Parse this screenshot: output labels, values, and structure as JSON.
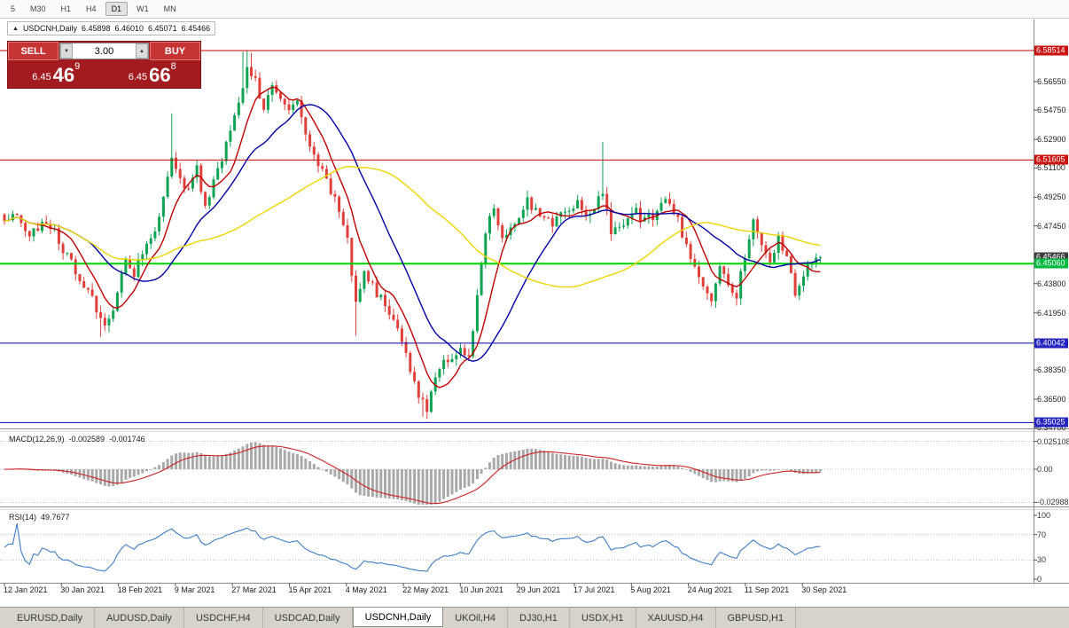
{
  "toolbar": {
    "timeframes": [
      {
        "label": "5",
        "active": false
      },
      {
        "label": "M30",
        "active": false
      },
      {
        "label": "H1",
        "active": false
      },
      {
        "label": "H4",
        "active": false
      },
      {
        "label": "D1",
        "active": true
      },
      {
        "label": "W1",
        "active": false
      },
      {
        "label": "MN",
        "active": false
      }
    ]
  },
  "header": {
    "direction_arrow": "▲",
    "symbol": "USDCNH,Daily",
    "open": "6.45898",
    "high": "6.46010",
    "low": "6.45071",
    "close": "6.45466"
  },
  "trade_panel": {
    "sell_label": "SELL",
    "buy_label": "BUY",
    "volume": "3.00",
    "volume_down_glyph": "▼",
    "volume_up_glyph": "▲",
    "bid": {
      "small": "6.45",
      "big": "46",
      "sup": "9"
    },
    "ask": {
      "small": "6.45",
      "big": "66",
      "sup": "8"
    }
  },
  "price_axis": {
    "labels": [
      {
        "text": "6.56550",
        "price": 6.5655
      },
      {
        "text": "6.54750",
        "price": 6.5475
      },
      {
        "text": "6.52900",
        "price": 6.529
      },
      {
        "text": "6.51100",
        "price": 6.511
      },
      {
        "text": "6.49250",
        "price": 6.4925
      },
      {
        "text": "6.47450",
        "price": 6.4745
      },
      {
        "text": "6.45600",
        "price": 6.456
      },
      {
        "text": "6.43800",
        "price": 6.438
      },
      {
        "text": "6.41950",
        "price": 6.4195
      },
      {
        "text": "6.38350",
        "price": 6.3835
      },
      {
        "text": "6.36500",
        "price": 6.365
      },
      {
        "text": "6.34700",
        "price": 6.347
      }
    ],
    "boxes": [
      {
        "text": "6.58514",
        "price": 6.58514,
        "color": "red"
      },
      {
        "text": "6.51605",
        "price": 6.51605,
        "color": "red"
      },
      {
        "text": "6.45466",
        "price": 6.45466,
        "color": "black"
      },
      {
        "text": "6.45060",
        "price": 6.4506,
        "color": "green"
      },
      {
        "text": "6.40042",
        "price": 6.40042,
        "color": "blue"
      },
      {
        "text": "6.35025",
        "price": 6.35025,
        "color": "blue"
      }
    ]
  },
  "indicator_panels": {
    "macd": {
      "title": "MACD(12,26,9)",
      "main_value": "-0.002589",
      "signal_value": "-0.001746",
      "axis_labels": [
        {
          "text": "0.025108",
          "value": 0.025108
        },
        {
          "text": "0.00",
          "value": 0
        },
        {
          "text": "-0.02988",
          "value": -0.02988
        }
      ]
    },
    "rsi": {
      "title": "RSI(14)",
      "value": "49.7677",
      "axis_labels": [
        {
          "text": "100",
          "value": 100
        },
        {
          "text": "70",
          "value": 70
        },
        {
          "text": "30",
          "value": 30
        },
        {
          "text": "0",
          "value": 0
        }
      ]
    }
  },
  "time_axis": {
    "labels": [
      "12 Jan 2021",
      "30 Jan 2021",
      "18 Feb 2021",
      "9 Mar 2021",
      "27 Mar 2021",
      "15 Apr 2021",
      "4 May 2021",
      "22 May 2021",
      "10 Jun 2021",
      "29 Jun 2021",
      "17 Jul 2021",
      "5 Aug 2021",
      "24 Aug 2021",
      "11 Sep 2021",
      "30 Sep 2021"
    ]
  },
  "tabs": [
    {
      "label": "EURUSD,Daily",
      "active": false
    },
    {
      "label": "AUDUSD,Daily",
      "active": false
    },
    {
      "label": "USDCHF,H4",
      "active": false
    },
    {
      "label": "USDCAD,Daily",
      "active": false
    },
    {
      "label": "USDCNH,Daily",
      "active": true
    },
    {
      "label": "UKOil,H4",
      "active": false
    },
    {
      "label": "DJ30,H1",
      "active": false
    },
    {
      "label": "USDX,H1",
      "active": false
    },
    {
      "label": "XAUUSD,H4",
      "active": false
    },
    {
      "label": "GBPUSD,H1",
      "active": false
    }
  ],
  "colors": {
    "candle_up": "#0fa352",
    "candle_down": "#e0403a",
    "ma_fast": "#c00000",
    "ma_mid": "#0000a6",
    "ma_slow": "#eed500",
    "macd_histogram": "#a9a9a9",
    "macd_signal": "#cc2222",
    "rsi_line": "#3d7dc8",
    "hline_red": "#cc0000",
    "hline_green": "#00d200",
    "hline_blue": "#0000bb",
    "axis_box_red": "#cc1111",
    "axis_box_green": "#00b93e",
    "axis_box_blue": "#2424c0",
    "axis_box_black": "#3e3e3e",
    "sell_buy_button": "#c63434",
    "panel_background": "#a31b1e"
  },
  "chart_data": {
    "type": "candlestick",
    "symbol": "USDCNH",
    "timeframe": "Daily",
    "current_bar": {
      "open": 6.45898,
      "high": 6.4601,
      "low": 6.45071,
      "close": 6.45466
    },
    "price_axis_visible_range": [
      6.347,
      6.605
    ],
    "num_candles": 196,
    "close_path_anchors": [
      [
        0,
        6.476
      ],
      [
        3,
        6.481
      ],
      [
        6,
        6.47
      ],
      [
        9,
        6.476
      ],
      [
        12,
        6.47
      ],
      [
        15,
        6.455
      ],
      [
        18,
        6.442
      ],
      [
        21,
        6.428
      ],
      [
        24,
        6.411
      ],
      [
        26,
        6.423
      ],
      [
        29,
        6.452
      ],
      [
        31,
        6.443
      ],
      [
        33,
        6.458
      ],
      [
        35,
        6.465
      ],
      [
        38,
        6.49
      ],
      [
        40,
        6.517
      ],
      [
        42,
        6.503
      ],
      [
        44,
        6.498
      ],
      [
        46,
        6.511
      ],
      [
        48,
        6.486
      ],
      [
        50,
        6.503
      ],
      [
        53,
        6.525
      ],
      [
        56,
        6.55
      ],
      [
        58,
        6.572
      ],
      [
        60,
        6.566
      ],
      [
        62,
        6.549
      ],
      [
        64,
        6.561
      ],
      [
        66,
        6.553
      ],
      [
        68,
        6.546
      ],
      [
        70,
        6.552
      ],
      [
        73,
        6.525
      ],
      [
        76,
        6.508
      ],
      [
        79,
        6.492
      ],
      [
        82,
        6.468
      ],
      [
        84,
        6.424
      ],
      [
        86,
        6.443
      ],
      [
        88,
        6.436
      ],
      [
        90,
        6.428
      ],
      [
        92,
        6.418
      ],
      [
        95,
        6.403
      ],
      [
        97,
        6.385
      ],
      [
        99,
        6.368
      ],
      [
        101,
        6.357
      ],
      [
        103,
        6.379
      ],
      [
        105,
        6.388
      ],
      [
        107,
        6.392
      ],
      [
        109,
        6.398
      ],
      [
        111,
        6.391
      ],
      [
        113,
        6.429
      ],
      [
        115,
        6.471
      ],
      [
        117,
        6.486
      ],
      [
        119,
        6.469
      ],
      [
        121,
        6.474
      ],
      [
        123,
        6.482
      ],
      [
        125,
        6.49
      ],
      [
        127,
        6.485
      ],
      [
        129,
        6.48
      ],
      [
        131,
        6.475
      ],
      [
        133,
        6.481
      ],
      [
        135,
        6.483
      ],
      [
        137,
        6.489
      ],
      [
        139,
        6.478
      ],
      [
        141,
        6.487
      ],
      [
        143,
        6.497
      ],
      [
        145,
        6.469
      ],
      [
        147,
        6.474
      ],
      [
        149,
        6.479
      ],
      [
        151,
        6.483
      ],
      [
        153,
        6.477
      ],
      [
        155,
        6.481
      ],
      [
        157,
        6.491
      ],
      [
        159,
        6.486
      ],
      [
        161,
        6.478
      ],
      [
        163,
        6.461
      ],
      [
        165,
        6.447
      ],
      [
        167,
        6.437
      ],
      [
        169,
        6.426
      ],
      [
        171,
        6.448
      ],
      [
        173,
        6.438
      ],
      [
        175,
        6.431
      ],
      [
        177,
        6.456
      ],
      [
        179,
        6.477
      ],
      [
        181,
        6.465
      ],
      [
        183,
        6.454
      ],
      [
        185,
        6.466
      ],
      [
        187,
        6.457
      ],
      [
        189,
        6.431
      ],
      [
        191,
        6.444
      ],
      [
        193,
        6.451
      ],
      [
        195,
        6.4547
      ]
    ],
    "wick_overrides": [
      {
        "i": 23,
        "low": 6.4045
      },
      {
        "i": 40,
        "high": 6.5455
      },
      {
        "i": 57,
        "high": 6.5845
      },
      {
        "i": 58,
        "high": 6.5851
      },
      {
        "i": 59,
        "high": 6.5838
      },
      {
        "i": 84,
        "low": 6.4052
      },
      {
        "i": 100,
        "low": 6.354
      },
      {
        "i": 101,
        "low": 6.3525
      },
      {
        "i": 143,
        "high": 6.5275
      }
    ],
    "horizontal_lines": [
      {
        "price": 6.58514,
        "color": "red",
        "width": 1
      },
      {
        "price": 6.51605,
        "color": "red",
        "width": 1
      },
      {
        "price": 6.4506,
        "color": "green",
        "width": 2
      },
      {
        "price": 6.40042,
        "color": "blue",
        "width": 1
      },
      {
        "price": 6.35025,
        "color": "blue",
        "width": 1
      }
    ],
    "moving_averages": [
      {
        "period": 8,
        "color_key": "ma_fast"
      },
      {
        "period": 21,
        "color_key": "ma_mid"
      },
      {
        "period": 55,
        "color_key": "ma_slow"
      }
    ],
    "indicators": [
      {
        "type": "MACD",
        "params": [
          12,
          26,
          9
        ],
        "values": [
          -0.002589,
          -0.001746
        ]
      },
      {
        "type": "RSI",
        "params": [
          14
        ],
        "value": 49.7677,
        "levels": [
          30,
          70
        ]
      }
    ]
  }
}
